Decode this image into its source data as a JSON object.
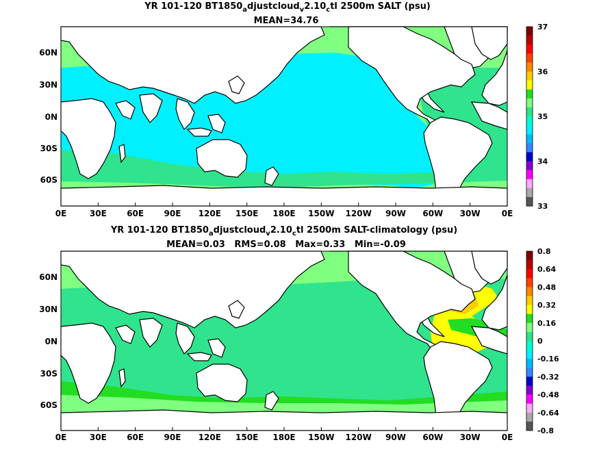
{
  "colors": {
    "ocean_cyan": "#00f0ff",
    "ocean_green": "#30e38d",
    "light_green": "#80ff80",
    "bright_green": "#22dd22",
    "yellow": "#ffff00",
    "gold": "#ffcc00",
    "land": "#ffffff",
    "coast": "#000000"
  },
  "panels": [
    {
      "title_prefix": "YR 101-120 BT1850",
      "title_sub1": "a",
      "title_mid1": "djustcloud",
      "title_sub2": "v",
      "title_mid2": "2.10",
      "title_sub3": "c",
      "title_suffix": "tl 2500m SALT (psu)",
      "stats": "MEAN=34.76",
      "x_ticks": [
        "0E",
        "30E",
        "60E",
        "90E",
        "120E",
        "150E",
        "180E",
        "150W",
        "120W",
        "90W",
        "60W",
        "30W",
        "0E"
      ],
      "y_ticks": [
        "60N",
        "30N",
        "0N",
        "30S",
        "60S"
      ],
      "colorbar_labels": [
        "37",
        "36",
        "35",
        "34",
        "33"
      ],
      "colorbar_colors": [
        "#7f0000",
        "#bb0000",
        "#ff0000",
        "#ff4400",
        "#ff8800",
        "#ffcc00",
        "#ffff00",
        "#22dd22",
        "#80ff80",
        "#30e38d",
        "#00ffcc",
        "#00f0ff",
        "#00bbff",
        "#3388ff",
        "#0000cc",
        "#8800cc",
        "#ff00ff",
        "#ffaaff",
        "#aaaaaa",
        "#555555"
      ]
    },
    {
      "title_prefix": "YR 101-120 BT1850",
      "title_sub1": "a",
      "title_mid1": "djustcloud",
      "title_sub2": "v",
      "title_mid2": "2.10",
      "title_sub3": "c",
      "title_suffix": "tl 2500m SALT-climatology (psu)",
      "stats": "MEAN=0.03   RMS=0.08   Max=0.33   Min=-0.09",
      "x_ticks": [
        "0E",
        "30E",
        "60E",
        "90E",
        "120E",
        "150E",
        "180E",
        "150W",
        "120W",
        "90W",
        "60W",
        "30W",
        "0E"
      ],
      "y_ticks": [
        "60N",
        "30N",
        "0N",
        "30S",
        "60S"
      ],
      "colorbar_labels": [
        "0.8",
        "0.64",
        "0.48",
        "0.32",
        "0.16",
        "0",
        "-0.16",
        "-0.32",
        "-0.48",
        "-0.64",
        "-0.8"
      ],
      "colorbar_colors": [
        "#7f0000",
        "#bb0000",
        "#ff0000",
        "#ff4400",
        "#ff8800",
        "#ffcc00",
        "#ffff00",
        "#22dd22",
        "#80ff80",
        "#30e38d",
        "#00ffcc",
        "#00f0ff",
        "#00bbff",
        "#3388ff",
        "#0000cc",
        "#8800cc",
        "#ff00ff",
        "#ffaaff",
        "#aaaaaa",
        "#555555"
      ]
    }
  ]
}
